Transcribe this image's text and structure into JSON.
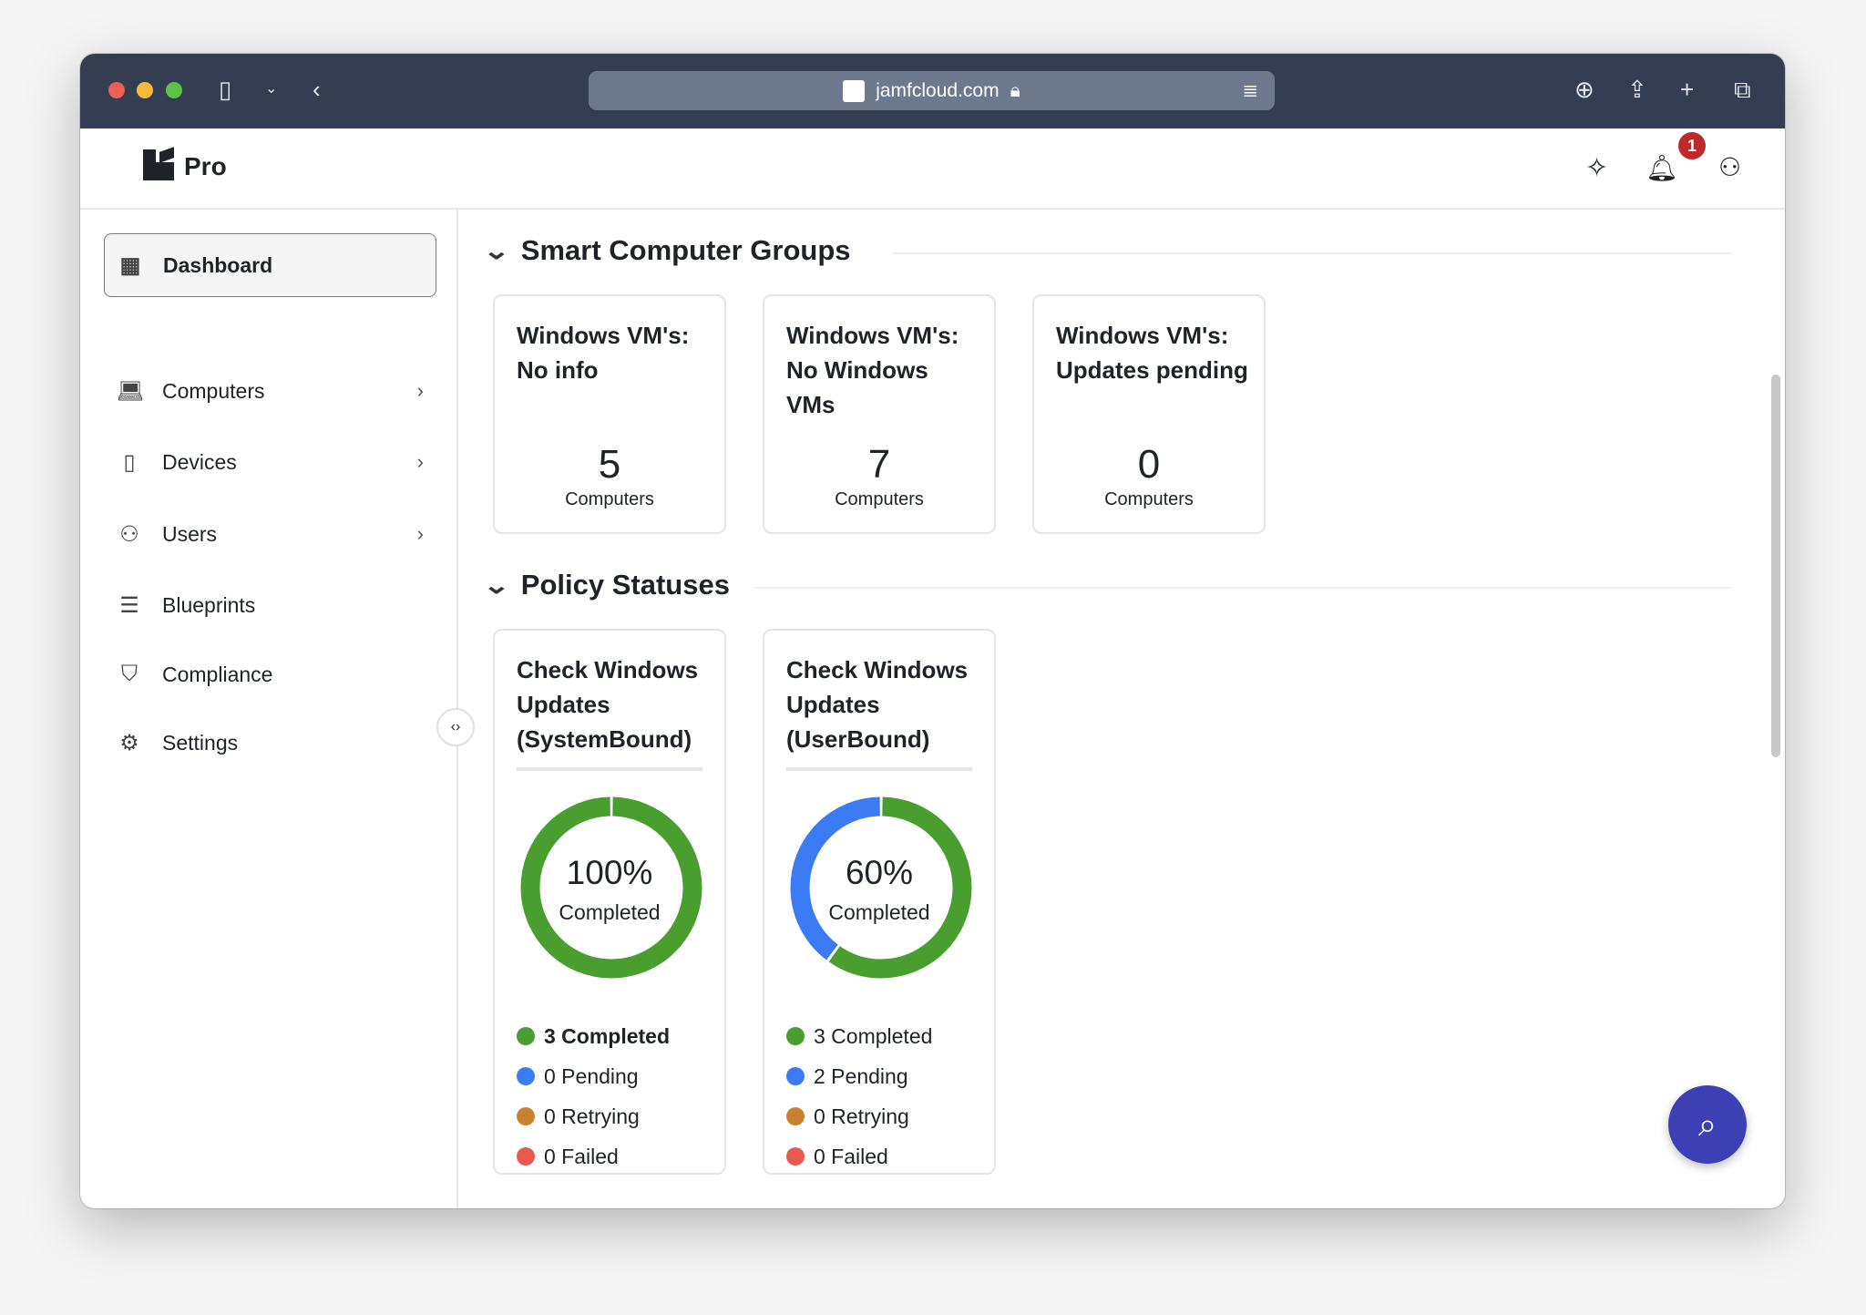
{
  "browser": {
    "url": "jamfcloud.com"
  },
  "app": {
    "product": "Pro",
    "notification_count": "1"
  },
  "sidebar": {
    "items": [
      {
        "label": "Dashboard",
        "icon": "dashboard-icon",
        "active": true,
        "chevron": false
      },
      {
        "label": "Computers",
        "icon": "laptop-icon",
        "chevron": true
      },
      {
        "label": "Devices",
        "icon": "devices-icon",
        "chevron": true
      },
      {
        "label": "Users",
        "icon": "users-icon",
        "chevron": true
      },
      {
        "label": "Blueprints",
        "icon": "sliders-icon",
        "chevron": false
      },
      {
        "label": "Compliance",
        "icon": "shield-icon",
        "chevron": false
      },
      {
        "label": "Settings",
        "icon": "gear-icon",
        "chevron": false
      }
    ]
  },
  "smart_groups": {
    "title": "Smart Computer Groups",
    "cards": [
      {
        "title": "Windows VM's: No info",
        "count": "5",
        "unit": "Computers"
      },
      {
        "title": "Windows VM's: No Windows VMs",
        "count": "7",
        "unit": "Computers"
      },
      {
        "title": "Windows VM's: Updates pending",
        "count": "0",
        "unit": "Computers"
      }
    ]
  },
  "policy_statuses": {
    "title": "Policy Statuses",
    "cards": [
      {
        "title": "Check Windows Updates (SystemBound)",
        "percent": "100%",
        "percent_label": "Completed",
        "completed": 3,
        "pending": 0,
        "retrying": 0,
        "failed": 0,
        "legend": [
          "3 Completed",
          "0 Pending",
          "0 Retrying",
          "0 Failed"
        ]
      },
      {
        "title": "Check Windows Updates (UserBound)",
        "percent": "60%",
        "percent_label": "Completed",
        "completed": 3,
        "pending": 2,
        "retrying": 0,
        "failed": 0,
        "legend": [
          "3 Completed",
          "2 Pending",
          "0 Retrying",
          "0 Failed"
        ]
      }
    ]
  },
  "colors": {
    "completed": "#4a9e30",
    "pending": "#3b7cf4",
    "retrying": "#c98330",
    "failed": "#e85a4f",
    "toolbar": "#343d52",
    "fab": "#3d3fb5"
  }
}
